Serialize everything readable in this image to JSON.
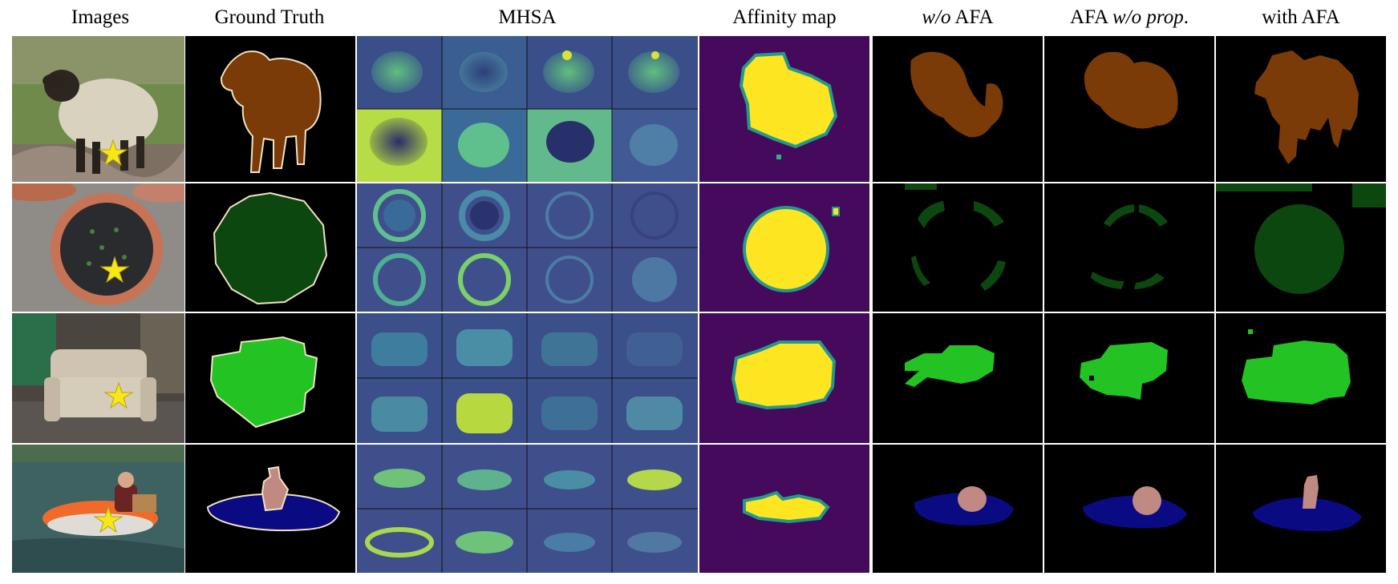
{
  "figure": {
    "headers": {
      "images": "Images",
      "ground_truth": "Ground Truth",
      "mhsa": "MHSA",
      "affinity_map": "Affinity map",
      "wo_afa": {
        "italic": "w/o",
        "rest": " AFA"
      },
      "afa_wo_prop": {
        "lead": "AFA ",
        "italic": "w/o prop",
        "tail": "."
      },
      "with_afa": "with AFA"
    },
    "rows": [
      {
        "name": "sheep",
        "class_color": "#7a3b08"
      },
      {
        "name": "potted-plant",
        "class_color": "#0d4710"
      },
      {
        "name": "sofa",
        "class_color": "#22c322"
      },
      {
        "name": "boat-person",
        "class_color": "#0a0a82",
        "secondary_color": "#c08982"
      }
    ],
    "colors": {
      "affinity_bg": "#450a5c",
      "affinity_fg": "#fde621",
      "affinity_edge": "#23998b",
      "mhsa_dark": "#3b4f8a",
      "mhsa_light": "#a6e052",
      "star": "#f7e719"
    }
  }
}
